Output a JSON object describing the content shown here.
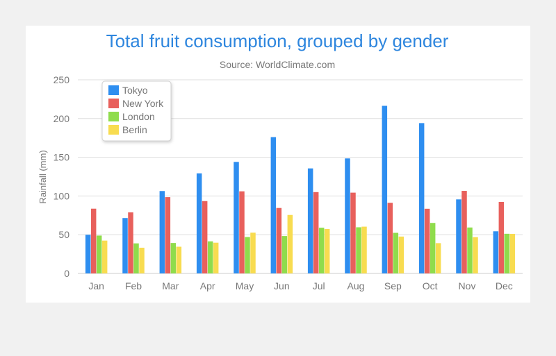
{
  "chart_data": {
    "type": "bar",
    "title": "Total fruit consumption, grouped by gender",
    "subtitle": "Source: WorldClimate.com",
    "xlabel": "",
    "ylabel": "Rainfall (mm)",
    "ylim": [
      0,
      250
    ],
    "yticks": [
      0,
      50,
      100,
      150,
      200,
      250
    ],
    "grid": true,
    "legend_position": "top-left",
    "categories": [
      "Jan",
      "Feb",
      "Mar",
      "Apr",
      "May",
      "Jun",
      "Jul",
      "Aug",
      "Sep",
      "Oct",
      "Nov",
      "Dec"
    ],
    "series": [
      {
        "name": "Tokyo",
        "color": "#2e8ef0",
        "values": [
          49.9,
          71.5,
          106.4,
          129.2,
          144.0,
          176.0,
          135.6,
          148.5,
          216.4,
          194.1,
          95.6,
          54.4
        ]
      },
      {
        "name": "New York",
        "color": "#e8605c",
        "values": [
          83.6,
          78.8,
          98.5,
          93.4,
          106.0,
          84.5,
          105.0,
          104.3,
          91.2,
          83.5,
          106.6,
          92.3
        ]
      },
      {
        "name": "London",
        "color": "#8fdc4c",
        "values": [
          48.9,
          38.8,
          39.3,
          41.4,
          47.0,
          48.3,
          59.0,
          59.6,
          52.4,
          65.2,
          59.3,
          51.2
        ]
      },
      {
        "name": "Berlin",
        "color": "#f8dc50",
        "values": [
          42.4,
          33.2,
          34.5,
          39.7,
          52.6,
          75.5,
          57.4,
          60.4,
          47.6,
          39.1,
          46.8,
          51.1
        ]
      }
    ]
  }
}
